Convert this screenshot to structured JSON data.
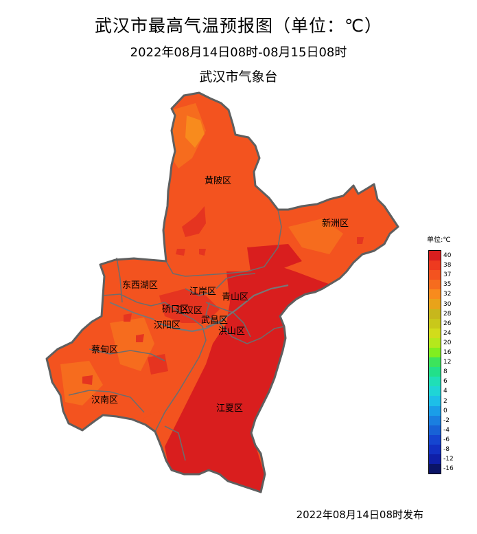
{
  "header": {
    "title": "武汉市最高气温预报图（单位：℃）",
    "subtitle": "2022年08月14日08时-08月15日08时",
    "agency": "武汉市气象台"
  },
  "footer": {
    "release": "2022年08月14日08时发布"
  },
  "districts": [
    {
      "id": "huangpi",
      "label": "黄陂区"
    },
    {
      "id": "xinzhou",
      "label": "新洲区"
    },
    {
      "id": "dongxihu",
      "label": "东西湖区"
    },
    {
      "id": "jiangan",
      "label": "江岸区"
    },
    {
      "id": "qingshan",
      "label": "青山区"
    },
    {
      "id": "qiaokou",
      "label": "硚口区"
    },
    {
      "id": "jianghan",
      "label": "江汉区"
    },
    {
      "id": "hanyang",
      "label": "汉阳区"
    },
    {
      "id": "wuchang",
      "label": "武昌区"
    },
    {
      "id": "hongshan",
      "label": "洪山区"
    },
    {
      "id": "caidian",
      "label": "蔡甸区"
    },
    {
      "id": "hannan",
      "label": "汉南区"
    },
    {
      "id": "jiangxia",
      "label": "江夏区"
    }
  ],
  "legend": {
    "title": "单位:℃",
    "levels": [
      {
        "value": "40",
        "color": "#d91e1e"
      },
      {
        "value": "38",
        "color": "#ee3a1f"
      },
      {
        "value": "37",
        "color": "#f3531f"
      },
      {
        "value": "35",
        "color": "#f66c1e"
      },
      {
        "value": "32",
        "color": "#f88b1d"
      },
      {
        "value": "30",
        "color": "#e8a31a"
      },
      {
        "value": "28",
        "color": "#c7b71c"
      },
      {
        "value": "26",
        "color": "#c9c81a"
      },
      {
        "value": "24",
        "color": "#d2dc1b"
      },
      {
        "value": "20",
        "color": "#b5e81c"
      },
      {
        "value": "16",
        "color": "#80ee1f"
      },
      {
        "value": "12",
        "color": "#3ce45c"
      },
      {
        "value": "8",
        "color": "#22e08a"
      },
      {
        "value": "6",
        "color": "#1fdfb7"
      },
      {
        "value": "4",
        "color": "#1fd5d6"
      },
      {
        "value": "2",
        "color": "#1dbfe8"
      },
      {
        "value": "0",
        "color": "#1a9ee8"
      },
      {
        "value": "-2",
        "color": "#1a7fe0"
      },
      {
        "value": "-4",
        "color": "#1862d6"
      },
      {
        "value": "-6",
        "color": "#1545d0"
      },
      {
        "value": "-8",
        "color": "#1230c2"
      },
      {
        "value": "-12",
        "color": "#0f1fa8"
      },
      {
        "value": "-16",
        "color": "#0b1467"
      }
    ]
  }
}
